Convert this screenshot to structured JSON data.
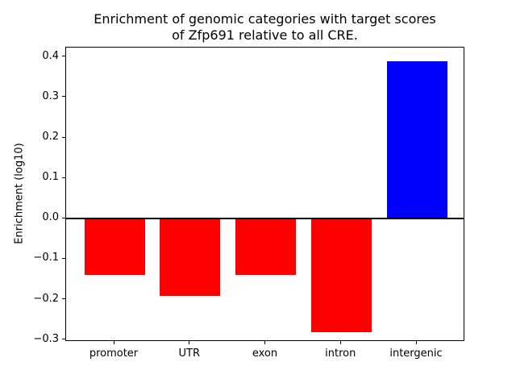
{
  "chart_data": {
    "type": "bar",
    "title": "Enrichment of genomic categories with target scores of Zfp691 relative to all CRE.",
    "title_lines": [
      "Enrichment of genomic categories with target scores",
      "of Zfp691 relative to all CRE."
    ],
    "xlabel": "",
    "ylabel": "Enrichment (log10)",
    "categories": [
      "promoter",
      "UTR",
      "exon",
      "intron",
      "intergenic"
    ],
    "values": [
      -0.14,
      -0.19,
      -0.14,
      -0.28,
      0.39
    ],
    "series": [
      {
        "name": "Enrichment (log10)",
        "values": [
          -0.14,
          -0.19,
          -0.14,
          -0.28,
          0.39
        ]
      }
    ],
    "bar_colors": [
      "#ff0000",
      "#ff0000",
      "#ff0000",
      "#ff0000",
      "#0000ff"
    ],
    "negative_color": "#ff0000",
    "positive_color": "#0000ff",
    "zero_line_color": "#000000",
    "yticks": [
      0.4,
      0.3,
      0.2,
      0.1,
      0.0,
      -0.1,
      -0.2,
      -0.3
    ],
    "ytick_labels": [
      "0.4",
      "0.3",
      "0.2",
      "0.1",
      "0.0",
      "−0.1",
      "−0.2",
      "−0.3"
    ],
    "ylim": [
      -0.3047,
      0.4235
    ],
    "xlim": [
      -0.64,
      4.64
    ],
    "bar_width_fraction": 0.8,
    "grid": false,
    "legend": null,
    "background_color": "#ffffff"
  }
}
